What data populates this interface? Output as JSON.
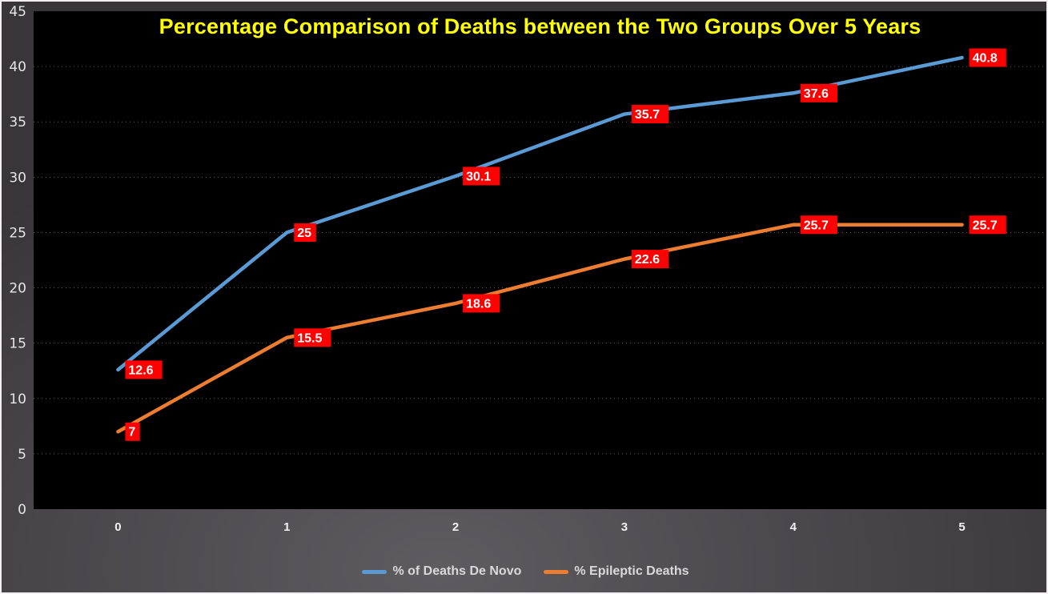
{
  "chart_data": {
    "type": "line",
    "title": "Percentage Comparison of Deaths between the Two Groups Over 5 Years",
    "x_categories": [
      "0",
      "1",
      "2",
      "3",
      "4",
      "5"
    ],
    "series": [
      {
        "name": "% of Deaths De Novo",
        "color": "#5B9BD5",
        "values": [
          12.6,
          25,
          30.1,
          35.7,
          37.6,
          40.8
        ],
        "data_labels": [
          "12.6",
          "25",
          "30.1",
          "35.7",
          "37.6",
          "40.8"
        ]
      },
      {
        "name": "% Epileptic Deaths",
        "color": "#ED7D31",
        "values": [
          7,
          15.5,
          18.6,
          22.6,
          25.7,
          25.7
        ],
        "data_labels": [
          "7",
          "15.5",
          "18.6",
          "22.6",
          "25.7",
          "25.7"
        ]
      }
    ],
    "ylim": [
      0,
      45
    ],
    "ytick_step": 5,
    "ytick_labels": [
      "0",
      "5",
      "10",
      "15",
      "20",
      "25",
      "30",
      "35",
      "40",
      "45"
    ],
    "grid": "horizontal-dotted",
    "legend_position": "bottom-center",
    "styles": {
      "title_color": "#FFFF00",
      "plot_bg": "#000000",
      "outer_bg": "#4c4a4d",
      "frame_border": "#F2EEF2",
      "data_label_bg": "#FF0000",
      "data_label_color": "#FFFFFF",
      "y_axis_text_color": "#E6E6E6",
      "x_axis_text_color": "#F2F2F2",
      "grid_color": "#6E6E6E",
      "legend_text_color": "#D9D9D9"
    }
  }
}
